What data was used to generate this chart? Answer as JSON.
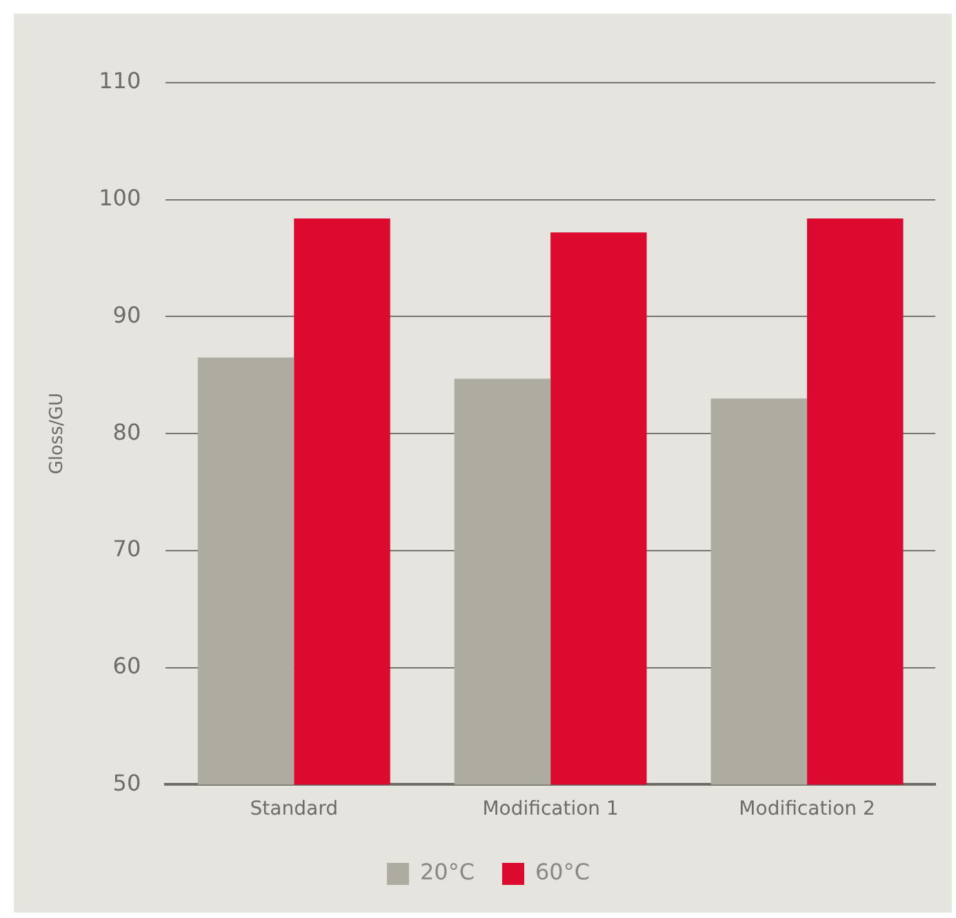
{
  "chart_data": {
    "type": "bar",
    "ylabel": "Gloss/GU",
    "categories": [
      "Standard",
      "Modification 1",
      "Modification 2"
    ],
    "series": [
      {
        "name": "20°C",
        "color": "#aeaba0",
        "values": [
          86.5,
          84.7,
          83.0
        ]
      },
      {
        "name": "60°C",
        "color": "#dc0a2f",
        "values": [
          98.4,
          97.2,
          98.4
        ]
      }
    ],
    "ylim": [
      50,
      110
    ],
    "yticks": [
      50,
      60,
      70,
      80,
      90,
      100,
      110
    ],
    "grid": "y",
    "legend": "bottom"
  }
}
